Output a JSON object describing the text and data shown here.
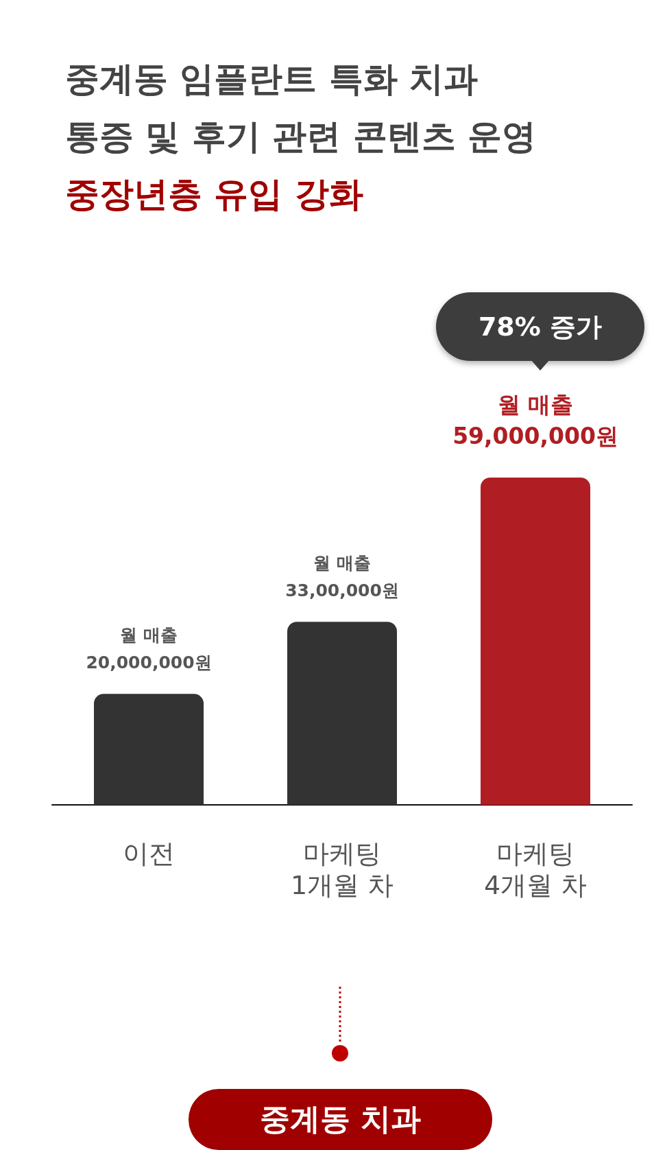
{
  "chart_data": {
    "type": "bar",
    "title": "중계동 임플란트 특화 치과\n통증 및 후기 관련 콘텐츠 운영",
    "subtitle": "중장년층 유입 강화",
    "categories": [
      "이전",
      "마케팅\n1개월 차",
      "마케팅\n4개월 차"
    ],
    "values": [
      20000000,
      33000000,
      59000000
    ],
    "colors": [
      "#333333",
      "#333333",
      "#b01e23"
    ],
    "value_labels": [
      "월 매출\n20,000,000원",
      "월 매출\n33,00,000원",
      "월 매출\n59,000,000원"
    ],
    "annotations": [
      "78% 증가",
      "중계동 치과"
    ],
    "grid": false
  }
}
